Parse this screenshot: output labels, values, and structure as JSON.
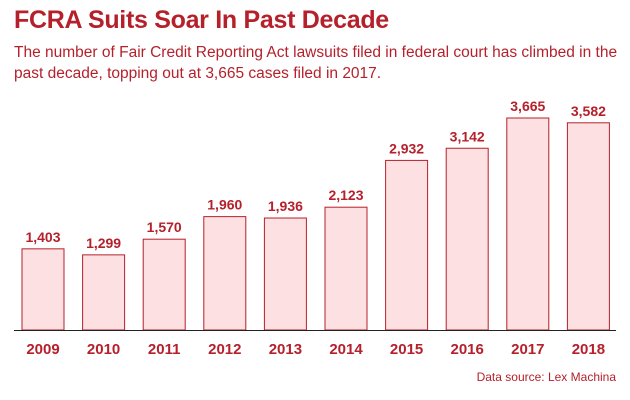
{
  "chart_data": {
    "type": "bar",
    "title": "FCRA Suits Soar In Past Decade",
    "subtitle": "The number of Fair Credit Reporting Act lawsuits filed in federal court has  climbed in the past decade, topping out at 3,665 cases filed in 2017.",
    "source": "Data source: Lex Machina",
    "categories": [
      "2009",
      "2010",
      "2011",
      "2012",
      "2013",
      "2014",
      "2015",
      "2016",
      "2017",
      "2018"
    ],
    "values": [
      1403,
      1299,
      1570,
      1960,
      1936,
      2123,
      2932,
      3142,
      3665,
      3582
    ],
    "value_labels": [
      "1,403",
      "1,299",
      "1,570",
      "1,960",
      "1,936",
      "2,123",
      "2,932",
      "3,142",
      "3,665",
      "3,582"
    ],
    "xlabel": "",
    "ylabel": "",
    "ylim": [
      0,
      3665
    ],
    "grid": false,
    "colors": {
      "bar_fill": "#fde0e2",
      "bar_stroke": "#b5202b",
      "text": "#b5202b"
    }
  }
}
